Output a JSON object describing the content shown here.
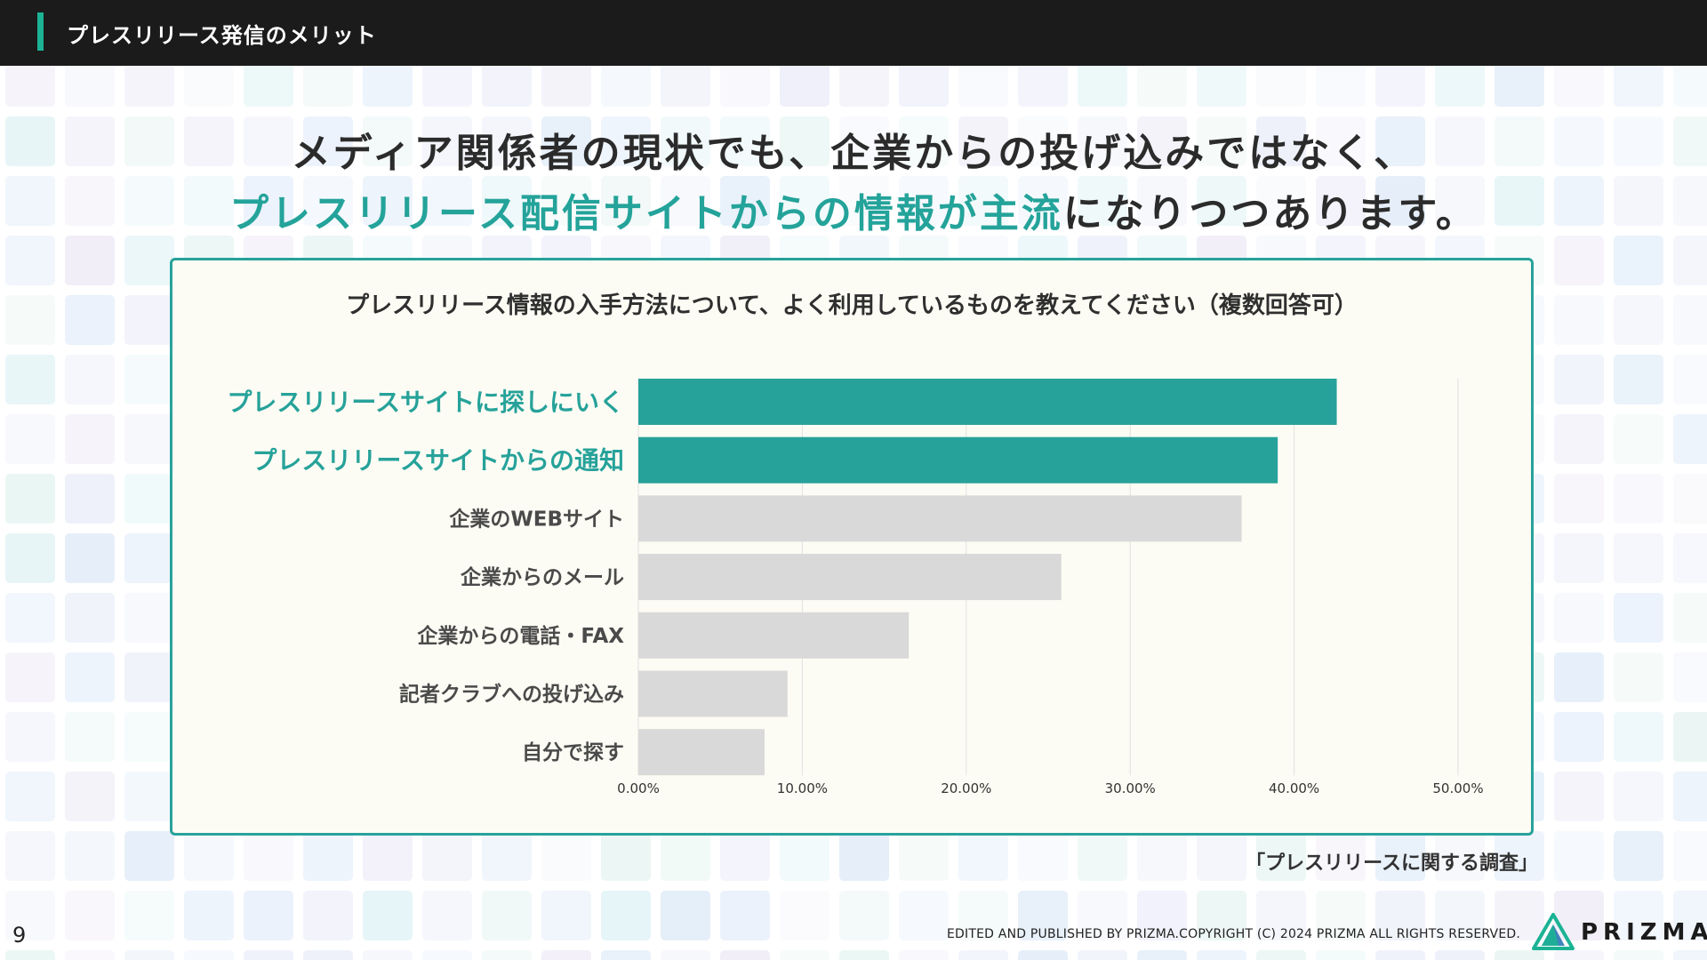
{
  "header": {
    "title": "プレスリリース発信のメリット"
  },
  "headline": {
    "line1": "メディア関係者の現状でも、企業からの投げ込みではなく、",
    "line2_highlight": "プレスリリース配信サイトからの情報が主流",
    "line2_rest": "になりつつあります。"
  },
  "chart_data": {
    "type": "bar",
    "orientation": "horizontal",
    "title": "プレスリリース情報の入手方法について、よく利用しているものを教えてください（複数回答可）",
    "categories": [
      "プレスリリースサイトに探しにいく",
      "プレスリリースサイトからの通知",
      "企業のWEBサイト",
      "企業からのメール",
      "企業からの電話・FAX",
      "記者クラブへの投げ込み",
      "自分で探す"
    ],
    "values": [
      42.6,
      39.0,
      36.8,
      25.8,
      16.5,
      9.1,
      7.7
    ],
    "highlighted": [
      true,
      true,
      false,
      false,
      false,
      false,
      false
    ],
    "xlim": [
      0,
      50
    ],
    "xticks": [
      "0.00%",
      "10.00%",
      "20.00%",
      "30.00%",
      "40.00%",
      "50.00%"
    ],
    "grid": true,
    "colors": {
      "highlight": "#26a29a",
      "normal": "#d9d9d9",
      "grid": "#e0e0e0"
    }
  },
  "source": "「プレスリリースに関する調査」",
  "footer": {
    "page_number": "9",
    "copyright": "EDITED AND PUBLISHED BY PRIZMA.COPYRIGHT (C) 2024 PRIZMA ALL RIGHTS RESERVED.",
    "logo_text": "PRIZMA"
  }
}
